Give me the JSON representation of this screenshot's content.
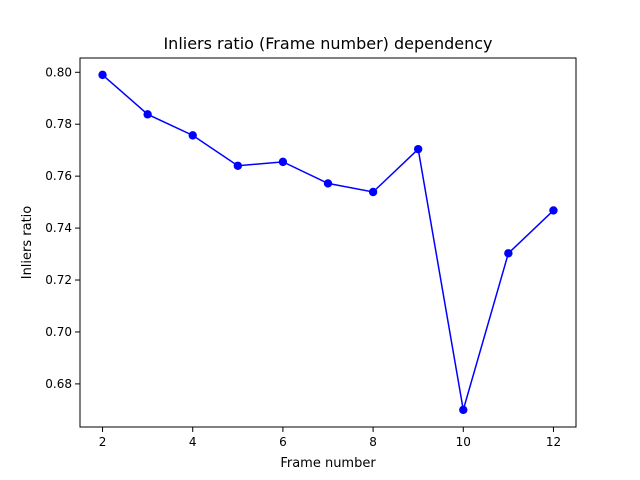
{
  "chart_data": {
    "type": "line",
    "title": "Inliers ratio (Frame number) dependency",
    "xlabel": "Frame number",
    "ylabel": "Inliers ratio",
    "xlim": [
      1.5,
      12.5
    ],
    "ylim": [
      0.6634,
      0.8055
    ],
    "xticks": [
      2,
      4,
      6,
      8,
      10,
      12
    ],
    "xtick_labels": [
      "2",
      "4",
      "6",
      "8",
      "10",
      "12"
    ],
    "yticks": [
      0.68,
      0.7,
      0.72,
      0.74,
      0.76,
      0.78,
      0.8
    ],
    "ytick_labels": [
      "0.68",
      "0.70",
      "0.72",
      "0.74",
      "0.76",
      "0.78",
      "0.80"
    ],
    "grid": false,
    "series": [
      {
        "color": "#0000ff",
        "marker": "circle",
        "x": [
          2,
          3,
          4,
          5,
          6,
          7,
          8,
          9,
          10,
          11,
          12
        ],
        "y": [
          0.799,
          0.7838,
          0.7757,
          0.764,
          0.7655,
          0.7572,
          0.7539,
          0.7704,
          0.67,
          0.7303,
          0.7468
        ]
      }
    ]
  }
}
